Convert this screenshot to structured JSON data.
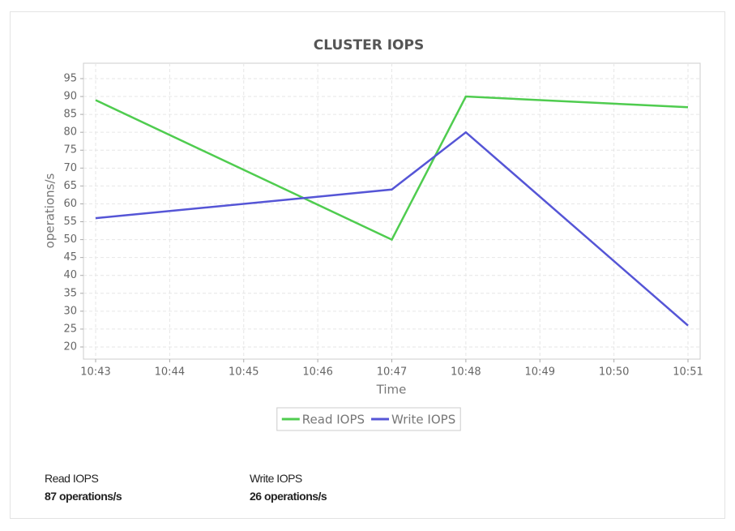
{
  "chart_data": {
    "type": "line",
    "title": "CLUSTER IOPS",
    "x_label": "Time",
    "y_label": "operations/s",
    "x": [
      "10:43",
      "10:47",
      "10:48",
      "10:51"
    ],
    "xticks": [
      "10:43",
      "10:44",
      "10:45",
      "10:46",
      "10:47",
      "10:48",
      "10:49",
      "10:50",
      "10:51"
    ],
    "series": [
      {
        "name": "Read IOPS",
        "color": "#4fcc4f",
        "values": [
          89,
          50,
          90,
          87
        ]
      },
      {
        "name": "Write IOPS",
        "color": "#5555d6",
        "values": [
          56,
          64,
          80,
          26
        ]
      }
    ],
    "ylim": [
      16.6,
      99.3
    ],
    "yticks": [
      20,
      25,
      30,
      35,
      40,
      45,
      50,
      55,
      60,
      65,
      70,
      75,
      80,
      85,
      90,
      95
    ],
    "grid": true,
    "legend": "bottom"
  },
  "stats": [
    {
      "label": "Read IOPS",
      "value": "87 operations/s"
    },
    {
      "label": "Write IOPS",
      "value": "26 operations/s"
    }
  ]
}
